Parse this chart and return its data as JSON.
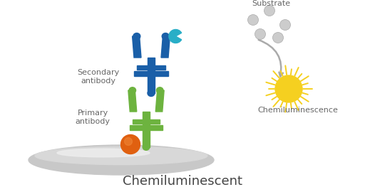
{
  "background_color": "#ffffff",
  "title": "Chemiluminescent",
  "title_fontsize": 13,
  "title_color": "#444444",
  "primary_color": "#6db33f",
  "secondary_color": "#1a5fa8",
  "enzyme_color": "#29aec7",
  "antigen_color": "#e06010",
  "membrane_color1": "#c8c8c8",
  "membrane_color2": "#d8d8d8",
  "membrane_hl": "#eeeeee",
  "substrate_color": "#cccccc",
  "substrate_edge": "#aaaaaa",
  "chemilum_color": "#f5d020",
  "arrow_color": "#aaaaaa",
  "label_color": "#666666",
  "label_fontsize": 8,
  "substrate_label": "Substrate",
  "chemilum_label": "Chemiluminescence",
  "primary_label": "Primary\nantibody",
  "secondary_label": "Secondary\nantibody",
  "figw": 5.12,
  "figh": 2.63,
  "dpi": 100,
  "xlim": [
    0,
    5.12
  ],
  "ylim": [
    0,
    2.63
  ]
}
